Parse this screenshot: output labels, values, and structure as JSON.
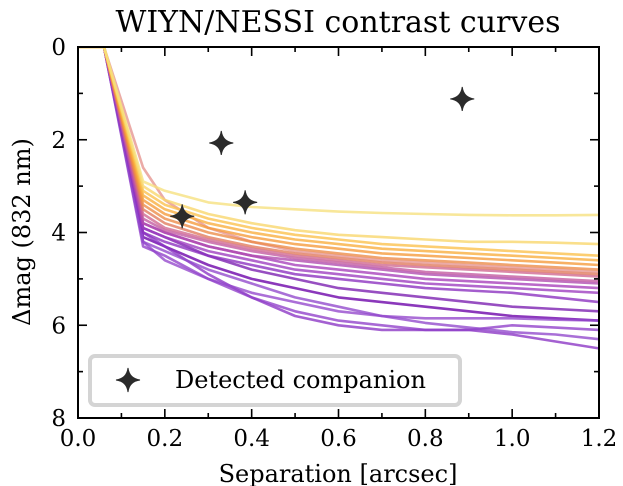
{
  "chart_data": {
    "type": "line",
    "title": "WIYN/NESSI contrast curves",
    "xlabel": "Separation [arcsec]",
    "ylabel": "Δmag (832 nm)",
    "xlim": [
      0.0,
      1.2
    ],
    "ylim": [
      8,
      0
    ],
    "y_inverted": true,
    "xticks": [
      "0.0",
      "0.2",
      "0.4",
      "0.6",
      "0.8",
      "1.0",
      "1.2"
    ],
    "yticks": [
      "0",
      "2",
      "4",
      "6",
      "8"
    ],
    "grid": false,
    "legend": {
      "placement": "lower-left",
      "entries": [
        "Detected companion"
      ]
    },
    "colormap": "plasma",
    "x": [
      0.0,
      0.06,
      0.15,
      0.2,
      0.3,
      0.4,
      0.5,
      0.6,
      0.7,
      0.8,
      0.9,
      1.0,
      1.1,
      1.2
    ],
    "series": [
      {
        "color": "#6a00a8",
        "values": [
          0,
          0,
          4.1,
          4.3,
          4.7,
          5.0,
          5.2,
          5.4,
          5.5,
          5.6,
          5.7,
          5.8,
          5.85,
          5.9
        ]
      },
      {
        "color": "#8b34c4",
        "values": [
          0,
          0,
          4.0,
          4.3,
          4.9,
          5.4,
          5.8,
          6.0,
          6.1,
          6.1,
          6.1,
          6.2,
          6.35,
          6.5
        ]
      },
      {
        "color": "#8f3fc9",
        "values": [
          0,
          0,
          4.3,
          4.5,
          5.0,
          5.4,
          5.7,
          5.9,
          6.0,
          6.1,
          6.1,
          6.0,
          6.05,
          6.1
        ]
      },
      {
        "color": "#9346cc",
        "values": [
          0,
          0,
          4.2,
          4.6,
          5.0,
          5.3,
          5.5,
          5.7,
          5.8,
          5.85,
          5.85,
          5.85,
          5.88,
          5.9
        ]
      },
      {
        "color": "#9148cc",
        "values": [
          0,
          0,
          4.2,
          4.4,
          4.8,
          5.1,
          5.4,
          5.6,
          5.8,
          5.95,
          6.05,
          6.15,
          6.2,
          6.3
        ]
      },
      {
        "color": "#7a1db0",
        "values": [
          0,
          0,
          3.9,
          4.1,
          4.5,
          4.8,
          5.0,
          5.2,
          5.3,
          5.4,
          5.5,
          5.6,
          5.65,
          5.7
        ]
      },
      {
        "color": "#8a2fbf",
        "values": [
          0,
          0,
          4.0,
          4.2,
          4.5,
          4.7,
          4.9,
          5.0,
          5.1,
          5.2,
          5.25,
          5.3,
          5.4,
          5.5
        ]
      },
      {
        "color": "#9c3cbf",
        "values": [
          0,
          0,
          3.9,
          4.1,
          4.4,
          4.6,
          4.8,
          4.9,
          5.0,
          5.1,
          5.15,
          5.2,
          5.25,
          5.3
        ]
      },
      {
        "color": "#a63fba",
        "values": [
          0,
          0,
          3.8,
          4.0,
          4.3,
          4.5,
          4.7,
          4.8,
          4.9,
          5.0,
          5.05,
          5.1,
          5.15,
          5.2
        ]
      },
      {
        "color": "#b04aae",
        "values": [
          0,
          0,
          3.8,
          4.0,
          4.3,
          4.5,
          4.6,
          4.7,
          4.8,
          4.9,
          4.95,
          5.0,
          5.05,
          5.1
        ]
      },
      {
        "color": "#c1589f",
        "values": [
          0,
          0,
          3.7,
          3.95,
          4.2,
          4.4,
          4.55,
          4.65,
          4.75,
          4.85,
          4.9,
          4.95,
          5.0,
          5.05
        ]
      },
      {
        "color": "#cf6690",
        "values": [
          0,
          0,
          3.6,
          3.9,
          4.15,
          4.35,
          4.5,
          4.6,
          4.7,
          4.75,
          4.8,
          4.85,
          4.9,
          4.95
        ]
      },
      {
        "color": "#e6938e",
        "values": [
          0,
          0,
          2.6,
          3.3,
          3.9,
          4.2,
          4.4,
          4.5,
          4.6,
          4.65,
          4.7,
          4.75,
          4.8,
          4.85
        ]
      },
      {
        "color": "#e07a5c",
        "values": [
          0,
          0,
          3.5,
          3.8,
          4.1,
          4.3,
          4.45,
          4.55,
          4.65,
          4.7,
          4.75,
          4.8,
          4.85,
          4.9
        ]
      },
      {
        "color": "#ec8a46",
        "values": [
          0,
          0,
          3.4,
          3.7,
          4.0,
          4.2,
          4.35,
          4.45,
          4.55,
          4.6,
          4.65,
          4.7,
          4.75,
          4.8
        ]
      },
      {
        "color": "#f59a3a",
        "values": [
          0,
          0,
          3.3,
          3.6,
          3.9,
          4.1,
          4.25,
          4.35,
          4.45,
          4.5,
          4.55,
          4.6,
          4.65,
          4.7
        ]
      },
      {
        "color": "#f9ad3c",
        "values": [
          0,
          0,
          3.2,
          3.5,
          3.8,
          4.0,
          4.15,
          4.25,
          4.35,
          4.4,
          4.45,
          4.5,
          4.55,
          4.6
        ]
      },
      {
        "color": "#fbc04a",
        "values": [
          0,
          0,
          3.1,
          3.4,
          3.7,
          3.9,
          4.05,
          4.15,
          4.25,
          4.3,
          4.35,
          4.4,
          4.45,
          4.5
        ]
      },
      {
        "color": "#f8d66a",
        "values": [
          0,
          0,
          3.0,
          3.3,
          3.6,
          3.8,
          3.95,
          4.05,
          4.1,
          4.15,
          4.2,
          4.2,
          4.22,
          4.25
        ]
      },
      {
        "color": "#f6e07e",
        "values": [
          0,
          0,
          2.9,
          3.1,
          3.35,
          3.45,
          3.5,
          3.55,
          3.58,
          3.6,
          3.62,
          3.63,
          3.63,
          3.62
        ]
      }
    ],
    "companions": {
      "name": "Detected companion",
      "x": [
        0.24,
        0.33,
        0.385,
        0.885
      ],
      "y": [
        3.65,
        2.07,
        3.35,
        1.12
      ]
    }
  }
}
